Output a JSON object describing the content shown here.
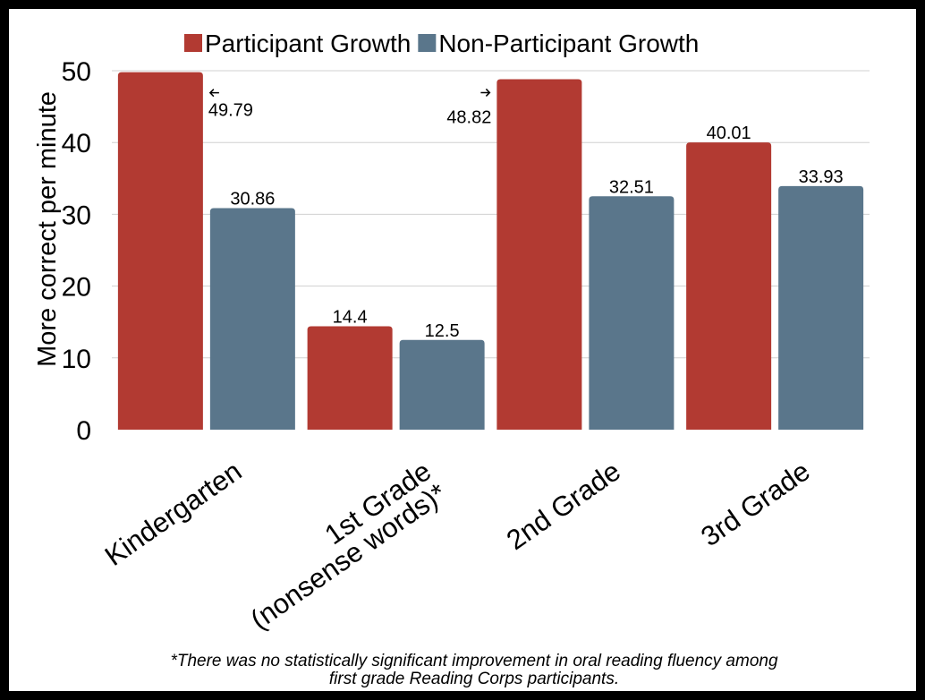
{
  "chart_data": {
    "type": "bar",
    "categories": [
      "Kindergarten",
      "1st Grade\n(nonsense words)*",
      "2nd Grade",
      "3rd Grade"
    ],
    "series": [
      {
        "name": "Participant Growth",
        "values": [
          49.79,
          14.4,
          48.82,
          40.01
        ],
        "labels": [
          "49.79",
          "14.4",
          "48.82",
          "40.01"
        ],
        "color": "#b23a32"
      },
      {
        "name": "Non-Participant Growth",
        "values": [
          30.86,
          12.5,
          32.51,
          33.93
        ],
        "labels": [
          "30.86",
          "12.5",
          "32.51",
          "33.93"
        ],
        "color": "#5a768b"
      }
    ],
    "ylabel": "More correct per minute",
    "ylim": [
      0,
      50
    ],
    "yticks": [
      0,
      10,
      20,
      30,
      40,
      50
    ],
    "grid": true,
    "legend": "top"
  },
  "footnote": [
    "*There was no statistically significant improvement in oral reading fluency among",
    "first grade Reading Corps participants."
  ],
  "colors": {
    "frame": "#000000",
    "gridline": "#d0d0d0"
  }
}
